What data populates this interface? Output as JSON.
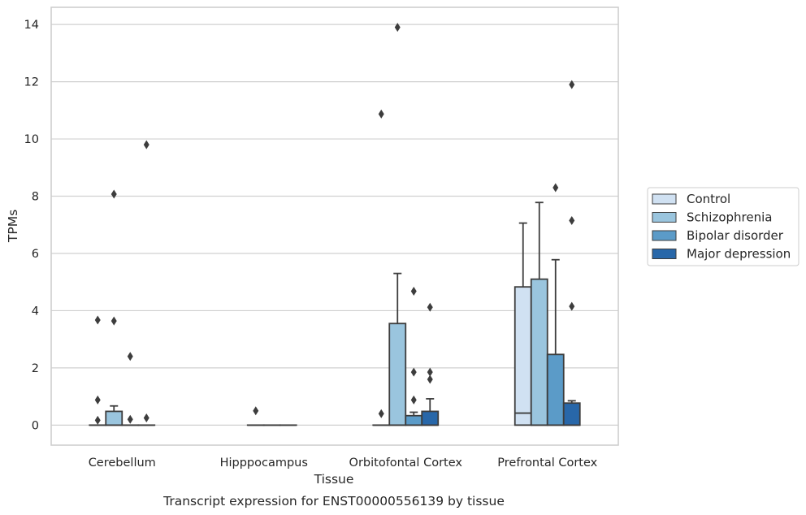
{
  "chart_data": {
    "type": "box",
    "title": "Transcript expression for ENST00000556139 by tissue",
    "xlabel": "Tissue",
    "ylabel": "TPMs",
    "ylim": [
      -0.7,
      14.6
    ],
    "yticks": [
      0,
      2,
      4,
      6,
      8,
      10,
      12,
      14
    ],
    "categories": [
      "Cerebellum",
      "Hipppocampus",
      "Orbitofontal Cortex",
      "Prefrontal Cortex"
    ],
    "grid": "horizontal",
    "legend_position": "right",
    "palette": [
      "#d0e1f2",
      "#9ac5de",
      "#5b9bc8",
      "#2867a9"
    ],
    "series": [
      {
        "name": "Control",
        "boxes": [
          {
            "q1": 0,
            "median": 0,
            "q3": 0,
            "whisker_low": 0,
            "whisker_high": 0,
            "outliers": [
              0.17,
              0.88,
              3.67
            ]
          },
          null,
          {
            "q1": 0,
            "median": 0,
            "q3": 0,
            "whisker_low": 0,
            "whisker_high": 0,
            "outliers": [
              0.4,
              10.87
            ]
          },
          {
            "q1": 0,
            "median": 0.42,
            "q3": 4.83,
            "whisker_low": 0,
            "whisker_high": 7.06,
            "outliers": []
          }
        ]
      },
      {
        "name": "Schizophrenia",
        "boxes": [
          {
            "q1": 0,
            "median": 0,
            "q3": 0.48,
            "whisker_low": 0,
            "whisker_high": 0.67,
            "outliers": [
              3.64,
              8.07
            ]
          },
          {
            "q1": 0,
            "median": 0,
            "q3": 0,
            "whisker_low": 0,
            "whisker_high": 0,
            "outliers": [
              0.5
            ]
          },
          {
            "q1": 0,
            "median": 0,
            "q3": 3.55,
            "whisker_low": 0,
            "whisker_high": 5.3,
            "outliers": [
              13.9
            ]
          },
          {
            "q1": 0,
            "median": 0,
            "q3": 5.1,
            "whisker_low": 0,
            "whisker_high": 7.78,
            "outliers": []
          }
        ]
      },
      {
        "name": "Bipolar disorder",
        "boxes": [
          {
            "q1": 0,
            "median": 0,
            "q3": 0,
            "whisker_low": 0,
            "whisker_high": 0,
            "outliers": [
              0.2,
              2.4
            ]
          },
          {
            "q1": 0,
            "median": 0,
            "q3": 0,
            "whisker_low": 0,
            "whisker_high": 0,
            "outliers": []
          },
          {
            "q1": 0,
            "median": 0,
            "q3": 0.33,
            "whisker_low": 0,
            "whisker_high": 0.45,
            "outliers": [
              0.88,
              1.85,
              4.68
            ]
          },
          {
            "q1": 0,
            "median": 0,
            "q3": 2.47,
            "whisker_low": 0,
            "whisker_high": 5.78,
            "outliers": [
              8.3
            ]
          }
        ]
      },
      {
        "name": "Major depression",
        "boxes": [
          {
            "q1": 0,
            "median": 0,
            "q3": 0,
            "whisker_low": 0,
            "whisker_high": 0,
            "outliers": [
              0.25,
              9.8
            ]
          },
          {
            "q1": 0,
            "median": 0,
            "q3": 0,
            "whisker_low": 0,
            "whisker_high": 0,
            "outliers": []
          },
          {
            "q1": 0,
            "median": 0,
            "q3": 0.48,
            "whisker_low": 0,
            "whisker_high": 0.92,
            "outliers": [
              1.6,
              1.85,
              4.12
            ]
          },
          {
            "q1": 0,
            "median": 0,
            "q3": 0.77,
            "whisker_low": 0,
            "whisker_high": 0.85,
            "outliers": [
              4.15,
              7.15,
              11.9
            ]
          }
        ]
      }
    ]
  }
}
